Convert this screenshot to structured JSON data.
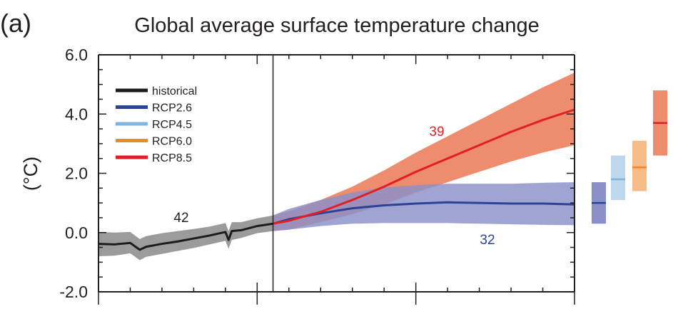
{
  "chart_data": {
    "type": "line",
    "panel_label": "(a)",
    "title": "Global average surface temperature change",
    "xlabel": "",
    "ylabel": "(°C)",
    "xlim": [
      1950,
      2100
    ],
    "ylim": [
      -2.0,
      6.0
    ],
    "y_ticks": [
      -2.0,
      0.0,
      2.0,
      4.0,
      6.0
    ],
    "y_tick_labels": [
      "-2.0",
      "0.0",
      "2.0",
      "4.0",
      "6.0"
    ],
    "projection_start": 2005,
    "legend_position": "top-left",
    "colors": {
      "historical": "#1c1c1c",
      "historical_band": "#9b9b9b",
      "rcp26": "#2a4396",
      "rcp26_band": "#8a90c9",
      "rcp45": "#7fb5e0",
      "rcp45_band": "#bdd7ee",
      "rcp60": "#f0891f",
      "rcp60_band": "#f6bb88",
      "rcp85": "#e31e24",
      "rcp85_band": "#ee8c6e"
    },
    "series": [
      {
        "name": "historical",
        "key": "historical",
        "model_count": "42",
        "x": [
          1950,
          1955,
          1960,
          1963,
          1965,
          1970,
          1975,
          1980,
          1985,
          1990,
          1991,
          1992,
          1995,
          2000,
          2005
        ],
        "y": [
          -0.38,
          -0.4,
          -0.35,
          -0.58,
          -0.48,
          -0.38,
          -0.3,
          -0.2,
          -0.1,
          0.02,
          -0.25,
          0.05,
          0.08,
          0.22,
          0.3
        ],
        "band_lower": [
          -0.8,
          -0.78,
          -0.7,
          -0.93,
          -0.82,
          -0.72,
          -0.62,
          -0.52,
          -0.4,
          -0.28,
          -0.55,
          -0.25,
          -0.18,
          -0.02,
          0.05
        ],
        "band_upper": [
          0.02,
          0.0,
          0.02,
          -0.22,
          -0.12,
          -0.02,
          0.05,
          0.12,
          0.2,
          0.32,
          0.05,
          0.35,
          0.35,
          0.48,
          0.58
        ]
      },
      {
        "name": "RCP2.6",
        "key": "rcp26",
        "model_count": "32",
        "x": [
          2005,
          2010,
          2020,
          2030,
          2040,
          2050,
          2060,
          2070,
          2080,
          2090,
          2100
        ],
        "y": [
          0.3,
          0.45,
          0.65,
          0.82,
          0.92,
          0.98,
          1.02,
          1.0,
          0.98,
          0.98,
          0.95
        ],
        "band_lower": [
          0.05,
          0.1,
          0.22,
          0.3,
          0.32,
          0.32,
          0.32,
          0.3,
          0.28,
          0.26,
          0.25
        ],
        "band_upper": [
          0.58,
          0.8,
          1.1,
          1.35,
          1.52,
          1.6,
          1.65,
          1.65,
          1.65,
          1.68,
          1.7
        ]
      },
      {
        "name": "RCP4.5",
        "key": "rcp45",
        "model_count": "",
        "x": [],
        "y": []
      },
      {
        "name": "RCP6.0",
        "key": "rcp60",
        "model_count": "",
        "x": [],
        "y": []
      },
      {
        "name": "RCP8.5",
        "key": "rcp85",
        "model_count": "39",
        "x": [
          2005,
          2010,
          2020,
          2030,
          2040,
          2050,
          2060,
          2070,
          2080,
          2090,
          2100
        ],
        "y": [
          0.3,
          0.4,
          0.7,
          1.1,
          1.55,
          2.05,
          2.5,
          2.95,
          3.4,
          3.8,
          4.15
        ],
        "band_lower": [
          0.05,
          0.1,
          0.35,
          0.62,
          0.95,
          1.35,
          1.7,
          2.05,
          2.4,
          2.7,
          2.95
        ],
        "band_upper": [
          0.58,
          0.72,
          1.1,
          1.55,
          2.1,
          2.7,
          3.25,
          3.8,
          4.35,
          4.9,
          5.4
        ]
      }
    ],
    "end_of_century_ranges": [
      {
        "key": "rcp26",
        "mean": 1.0,
        "low": 0.3,
        "high": 1.7
      },
      {
        "key": "rcp45",
        "mean": 1.8,
        "low": 1.1,
        "high": 2.6
      },
      {
        "key": "rcp60",
        "mean": 2.2,
        "low": 1.4,
        "high": 3.1
      },
      {
        "key": "rcp85",
        "mean": 3.7,
        "low": 2.6,
        "high": 4.8
      }
    ]
  }
}
